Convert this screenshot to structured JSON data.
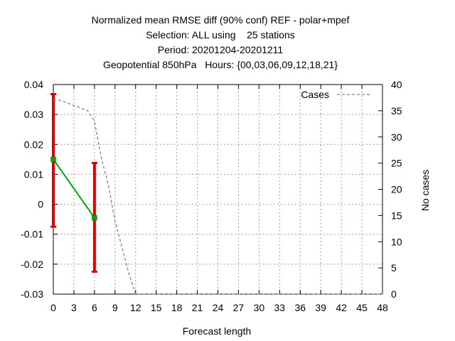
{
  "chart_data": {
    "type": "line",
    "title_lines": [
      "Normalized mean RMSE diff (90% conf) REF - polar+mpef",
      "Selection: ALL using    25 stations",
      "Period: 20201204-20201211",
      "Geopotential 850hPa   Hours: {00,03,06,09,12,18,21}"
    ],
    "xlabel": "Forecast length",
    "ylabel": "",
    "y2label": "No cases",
    "xlim": [
      0,
      48
    ],
    "ylim": [
      -0.03,
      0.04
    ],
    "y2lim": [
      0,
      40
    ],
    "xticks": [
      0,
      3,
      6,
      9,
      12,
      15,
      18,
      21,
      24,
      27,
      30,
      33,
      36,
      39,
      42,
      45,
      48
    ],
    "yticks": [
      -0.03,
      -0.02,
      -0.01,
      0,
      0.01,
      0.02,
      0.03,
      0.04
    ],
    "y2ticks": [
      0,
      5,
      10,
      15,
      20,
      25,
      30,
      35,
      40
    ],
    "ytick_labels": [
      "-0.03",
      "-0.02",
      "-0.01",
      "0",
      "0.01",
      "0.02",
      "0.03",
      "0.04"
    ],
    "grid": true,
    "legend": {
      "position": "top-right",
      "entries": [
        "Cases"
      ]
    },
    "series": [
      {
        "name": "",
        "x": [
          0,
          6
        ],
        "y": [
          0.015,
          -0.0045
        ],
        "err_low": [
          -0.0075,
          -0.0225
        ],
        "err_high": [
          0.0368,
          0.0138
        ],
        "color": "#00aa00",
        "err_color": "#e00000"
      },
      {
        "name": "Cases",
        "axis": "y2",
        "dashed": true,
        "color": "#808080",
        "x": [
          0,
          1,
          2,
          3,
          4,
          5,
          6,
          7,
          8,
          9,
          10,
          11,
          12,
          13,
          48
        ],
        "y": [
          37,
          37,
          36.5,
          36,
          35.5,
          35,
          33,
          26,
          21,
          14,
          9,
          4,
          0,
          0,
          0
        ]
      }
    ]
  }
}
